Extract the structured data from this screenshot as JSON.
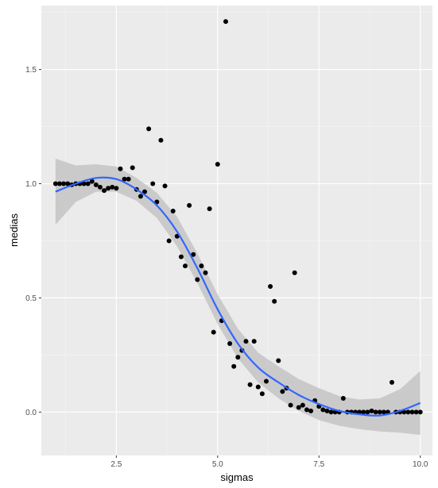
{
  "chart_data": {
    "type": "scatter",
    "title": "",
    "xlabel": "sigmas",
    "ylabel": "medias",
    "xlim": [
      0.65,
      10.3
    ],
    "ylim": [
      -0.19,
      1.78
    ],
    "x_ticks": [
      2.5,
      5.0,
      7.5,
      10.0
    ],
    "x_tick_labels": [
      "2.5",
      "5.0",
      "7.5",
      "10.0"
    ],
    "y_ticks": [
      0.0,
      0.5,
      1.0,
      1.5
    ],
    "y_tick_labels": [
      "0.0",
      "0.5",
      "1.0",
      "1.5"
    ],
    "grid": true,
    "legend": "none",
    "colors": {
      "panel_background": "#ebebeb",
      "grid_major": "#ffffff",
      "grid_minor": "#f5f5f5",
      "points": "#000000",
      "smooth_line": "#3366ff",
      "confidence_band": "#c4c4c4"
    },
    "series": [
      {
        "kind": "points",
        "x": [
          1.0,
          1.1,
          1.2,
          1.3,
          1.4,
          1.5,
          1.6,
          1.7,
          1.8,
          1.9,
          2.0,
          2.1,
          2.2,
          2.3,
          2.4,
          2.5,
          2.6,
          2.7,
          2.8,
          2.9,
          3.0,
          3.1,
          3.2,
          3.3,
          3.4,
          3.5,
          3.6,
          3.7,
          3.8,
          3.9,
          4.0,
          4.1,
          4.2,
          4.3,
          4.4,
          4.5,
          4.6,
          4.7,
          4.8,
          4.9,
          5.0,
          5.1,
          5.2,
          5.3,
          5.4,
          5.5,
          5.6,
          5.7,
          5.8,
          5.9,
          6.0,
          6.1,
          6.2,
          6.3,
          6.4,
          6.5,
          6.6,
          6.7,
          6.8,
          6.9,
          7.0,
          7.1,
          7.2,
          7.3,
          7.4,
          7.5,
          7.6,
          7.7,
          7.8,
          7.9,
          8.0,
          8.1,
          8.2,
          8.3,
          8.4,
          8.5,
          8.6,
          8.7,
          8.8,
          8.9,
          9.0,
          9.1,
          9.2,
          9.3,
          9.4,
          9.5,
          9.6,
          9.7,
          9.8,
          9.9,
          10.0
        ],
        "y": [
          1.0,
          1.0,
          1.0,
          1.0,
          0.995,
          1.0,
          1.0,
          1.0,
          1.0,
          1.01,
          0.995,
          0.985,
          0.97,
          0.98,
          0.985,
          0.98,
          1.065,
          1.02,
          1.02,
          1.07,
          0.975,
          0.945,
          0.965,
          1.24,
          1.0,
          0.92,
          1.19,
          0.99,
          0.75,
          0.88,
          0.77,
          0.68,
          0.64,
          0.905,
          0.69,
          0.58,
          0.64,
          0.61,
          0.89,
          0.35,
          1.085,
          0.4,
          1.71,
          0.3,
          0.2,
          0.24,
          0.27,
          0.31,
          0.12,
          0.31,
          0.11,
          0.08,
          0.135,
          0.55,
          0.485,
          0.225,
          0.09,
          0.105,
          0.03,
          0.61,
          0.02,
          0.03,
          0.01,
          0.005,
          0.05,
          0.025,
          0.01,
          0.005,
          0.0,
          0.0,
          0.0,
          0.06,
          0.0,
          0.0,
          0.0,
          0.0,
          0.0,
          0.0,
          0.005,
          0.0,
          0.0,
          0.0,
          0.0,
          0.13,
          0.0,
          0.0,
          0.0,
          0.0,
          0.0,
          0.0,
          0.0
        ]
      },
      {
        "kind": "smooth",
        "x": [
          1.0,
          1.5,
          2.0,
          2.5,
          3.0,
          3.5,
          4.0,
          4.5,
          5.0,
          5.5,
          6.0,
          6.5,
          7.0,
          7.5,
          8.0,
          8.5,
          9.0,
          9.5,
          10.0
        ],
        "y": [
          0.965,
          1.0,
          1.025,
          1.02,
          0.975,
          0.905,
          0.79,
          0.63,
          0.45,
          0.3,
          0.195,
          0.13,
          0.075,
          0.035,
          0.005,
          -0.01,
          -0.015,
          0.005,
          0.04
        ],
        "lower": [
          0.82,
          0.92,
          0.965,
          0.965,
          0.925,
          0.85,
          0.725,
          0.565,
          0.385,
          0.235,
          0.13,
          0.06,
          0.005,
          -0.035,
          -0.06,
          -0.075,
          -0.085,
          -0.09,
          -0.1
        ],
        "upper": [
          1.11,
          1.08,
          1.085,
          1.075,
          1.025,
          0.96,
          0.855,
          0.695,
          0.515,
          0.365,
          0.26,
          0.2,
          0.145,
          0.105,
          0.07,
          0.055,
          0.06,
          0.1,
          0.18
        ]
      }
    ]
  }
}
